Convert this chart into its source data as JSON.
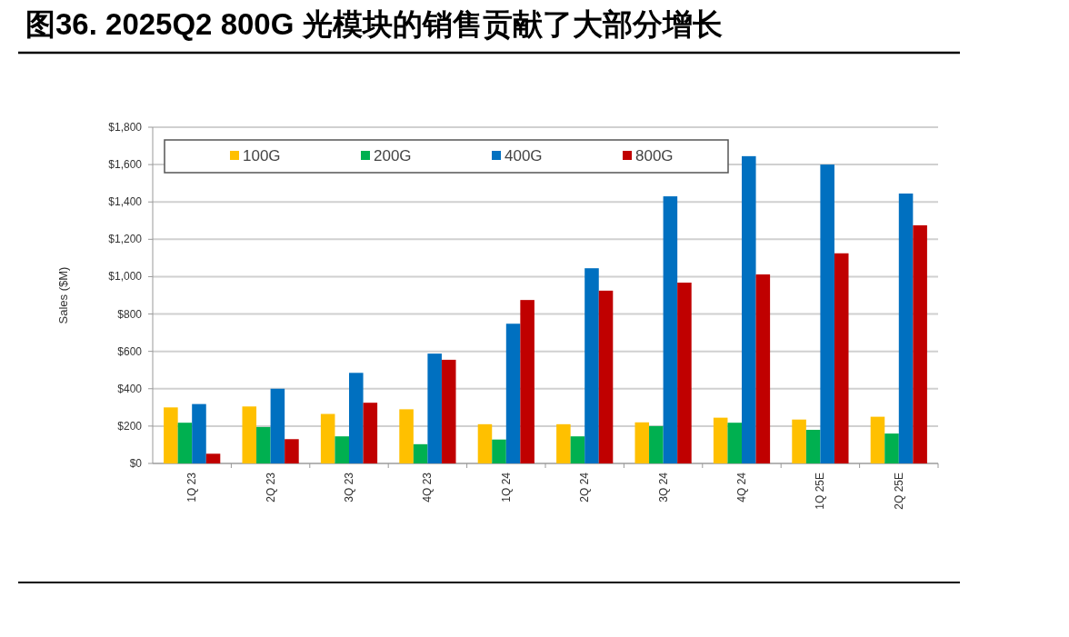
{
  "chart_data": {
    "type": "bar",
    "title": "图36. 2025Q2 800G 光模块的销售贡献了大部分增长",
    "ylabel": "Sales ($M)",
    "categories": [
      "1Q 23",
      "2Q 23",
      "3Q 23",
      "4Q 23",
      "1Q 24",
      "2Q 24",
      "3Q 24",
      "4Q 24",
      "1Q 25E",
      "2Q 25E"
    ],
    "series": [
      {
        "name": "100G",
        "color": "#ffc000",
        "values": [
          300,
          305,
          265,
          290,
          210,
          210,
          220,
          245,
          235,
          250
        ]
      },
      {
        "name": "200G",
        "color": "#00b050",
        "values": [
          218,
          195,
          145,
          103,
          128,
          145,
          200,
          218,
          180,
          160
        ]
      },
      {
        "name": "400G",
        "color": "#0070c0",
        "values": [
          318,
          400,
          485,
          588,
          748,
          1045,
          1430,
          1645,
          1600,
          1445
        ]
      },
      {
        "name": "800G",
        "color": "#c00000",
        "values": [
          52,
          130,
          325,
          555,
          875,
          925,
          968,
          1012,
          1125,
          1275
        ]
      }
    ],
    "ylim": [
      0,
      1800
    ],
    "yticks": [
      {
        "value": 0,
        "label": "$0"
      },
      {
        "value": 200,
        "label": "$200"
      },
      {
        "value": 400,
        "label": "$400"
      },
      {
        "value": 600,
        "label": "$600"
      },
      {
        "value": 800,
        "label": "$800"
      },
      {
        "value": 1000,
        "label": "$1,000"
      },
      {
        "value": 1200,
        "label": "$1,200"
      },
      {
        "value": 1400,
        "label": "$1,400"
      },
      {
        "value": 1600,
        "label": "$1,600"
      },
      {
        "value": 1800,
        "label": "$1,800"
      }
    ],
    "grid": "y",
    "legend": "top"
  }
}
